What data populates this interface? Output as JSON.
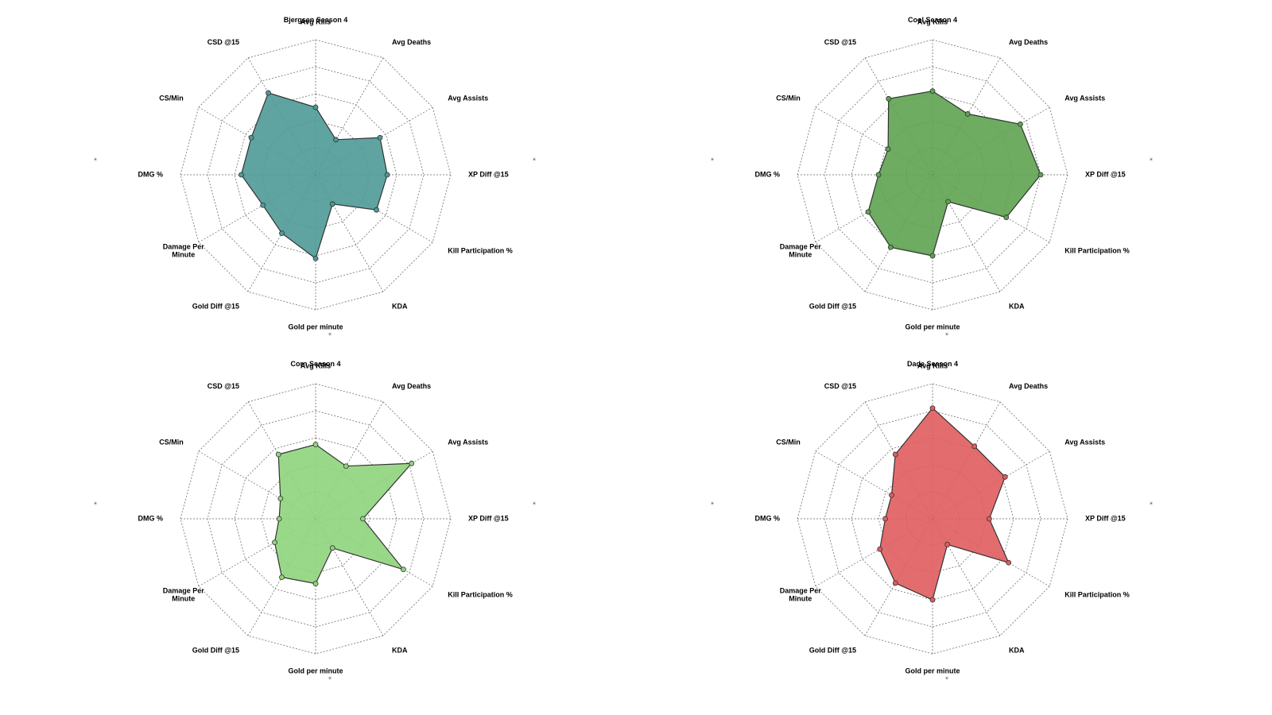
{
  "chart_data": [
    {
      "type": "radar",
      "title": "Bjergsen Season 4",
      "color": "#4e9a96",
      "axes": [
        "Avg Kills",
        "Avg Deaths",
        "Avg Assists",
        "XP Diff @15",
        "Kill Participation %",
        "KDA",
        "Gold per minute",
        "Gold Diff @15",
        "Damage Per Minute",
        "DMG %",
        "CS/Min",
        "CSD @15"
      ],
      "values": [
        0.5,
        0.3,
        0.55,
        0.53,
        0.52,
        0.25,
        0.62,
        0.5,
        0.45,
        0.55,
        0.55,
        0.7
      ],
      "grid_levels": 5,
      "corner_marks": "⁎"
    },
    {
      "type": "radar",
      "title": "Cool Season 4",
      "color": "#5da350",
      "axes": [
        "Avg Kills",
        "Avg Deaths",
        "Avg Assists",
        "XP Diff @15",
        "Kill Participation %",
        "KDA",
        "Gold per minute",
        "Gold Diff @15",
        "Damage Per Minute",
        "DMG %",
        "CS/Min",
        "CSD @15"
      ],
      "values": [
        0.62,
        0.52,
        0.75,
        0.8,
        0.63,
        0.23,
        0.6,
        0.62,
        0.55,
        0.4,
        0.38,
        0.65
      ],
      "grid_levels": 5,
      "corner_marks": "⁎"
    },
    {
      "type": "radar",
      "title": "Corn Season 4",
      "color": "#8fd47c",
      "axes": [
        "Avg Kills",
        "Avg Deaths",
        "Avg Assists",
        "XP Diff @15",
        "Kill Participation %",
        "KDA",
        "Gold per minute",
        "Gold Diff @15",
        "Damage Per Minute",
        "DMG %",
        "CS/Min",
        "CSD @15"
      ],
      "values": [
        0.55,
        0.45,
        0.82,
        0.35,
        0.75,
        0.25,
        0.48,
        0.5,
        0.35,
        0.27,
        0.3,
        0.55
      ],
      "grid_levels": 5,
      "corner_marks": "⁎"
    },
    {
      "type": "radar",
      "title": "Dade Season 4",
      "color": "#e05c5f",
      "axes": [
        "Avg Kills",
        "Avg Deaths",
        "Avg Assists",
        "XP Diff @15",
        "Kill Participation %",
        "KDA",
        "Gold per minute",
        "Gold Diff @15",
        "Damage Per Minute",
        "DMG %",
        "CS/Min",
        "CSD @15"
      ],
      "values": [
        0.82,
        0.62,
        0.62,
        0.42,
        0.65,
        0.22,
        0.6,
        0.55,
        0.45,
        0.35,
        0.35,
        0.55
      ],
      "grid_levels": 5,
      "corner_marks": "⁎"
    }
  ]
}
